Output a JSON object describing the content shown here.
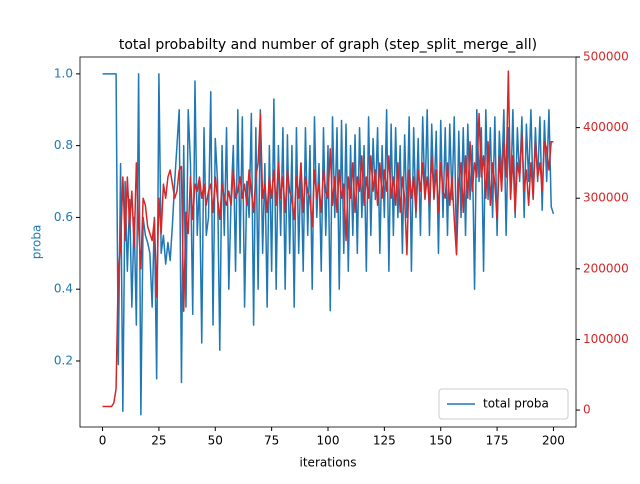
{
  "chart_data": {
    "type": "line",
    "title": "total probabilty and number of graph (step_split_merge_all)",
    "xlabel": "iterations",
    "ylabel": "proba",
    "legend": "lower right",
    "x": [
      0,
      1,
      2,
      3,
      4,
      5,
      6,
      7,
      8,
      9,
      10,
      11,
      12,
      13,
      14,
      15,
      16,
      17,
      18,
      19,
      20,
      21,
      22,
      23,
      24,
      25,
      26,
      27,
      28,
      29,
      30,
      31,
      32,
      33,
      34,
      35,
      36,
      37,
      38,
      39,
      40,
      41,
      42,
      43,
      44,
      45,
      46,
      47,
      48,
      49,
      50,
      51,
      52,
      53,
      54,
      55,
      56,
      57,
      58,
      59,
      60,
      61,
      62,
      63,
      64,
      65,
      66,
      67,
      68,
      69,
      70,
      71,
      72,
      73,
      74,
      75,
      76,
      77,
      78,
      79,
      80,
      81,
      82,
      83,
      84,
      85,
      86,
      87,
      88,
      89,
      90,
      91,
      92,
      93,
      94,
      95,
      96,
      97,
      98,
      99,
      100,
      101,
      102,
      103,
      104,
      105,
      106,
      107,
      108,
      109,
      110,
      111,
      112,
      113,
      114,
      115,
      116,
      117,
      118,
      119,
      120,
      121,
      122,
      123,
      124,
      125,
      126,
      127,
      128,
      129,
      130,
      131,
      132,
      133,
      134,
      135,
      136,
      137,
      138,
      139,
      140,
      141,
      142,
      143,
      144,
      145,
      146,
      147,
      148,
      149,
      150,
      151,
      152,
      153,
      154,
      155,
      156,
      157,
      158,
      159,
      160,
      161,
      162,
      163,
      164,
      165,
      166,
      167,
      168,
      169,
      170,
      171,
      172,
      173,
      174,
      175,
      176,
      177,
      178,
      179,
      180,
      181,
      182,
      183,
      184,
      185,
      186,
      187,
      188,
      189,
      190,
      191,
      192,
      193,
      194,
      195,
      196,
      197,
      198,
      199,
      200
    ],
    "series": [
      {
        "name": "total proba",
        "color": "#1f77b4",
        "axis": "y",
        "values": [
          1,
          1,
          1,
          1,
          1,
          1,
          1,
          0.19,
          0.75,
          0.06,
          0.7,
          0.45,
          0.65,
          0.35,
          0.6,
          0.3,
          1,
          0.05,
          0.6,
          0.55,
          0.53,
          0.5,
          0.35,
          0.6,
          0.15,
          1,
          0.5,
          0.55,
          0.47,
          0.53,
          0.48,
          0.58,
          0.7,
          0.8,
          0.9,
          0.14,
          0.8,
          0.35,
          0.9,
          0.75,
          0.33,
          0.98,
          0.55,
          0.7,
          0.25,
          0.85,
          0.55,
          0.6,
          0.95,
          0.3,
          0.82,
          0.7,
          0.23,
          0.8,
          0.55,
          0.85,
          0.4,
          0.65,
          0.8,
          0.45,
          0.9,
          0.5,
          0.88,
          0.35,
          0.7,
          0.6,
          0.89,
          0.3,
          0.85,
          0.4,
          0.9,
          0.5,
          0.75,
          0.35,
          0.8,
          0.45,
          0.93,
          0.4,
          0.8,
          0.55,
          0.85,
          0.4,
          0.83,
          0.5,
          0.8,
          0.35,
          0.85,
          0.5,
          0.75,
          0.45,
          0.85,
          0.55,
          0.8,
          0.4,
          0.88,
          0.6,
          0.75,
          0.45,
          0.85,
          0.55,
          0.8,
          0.34,
          0.88,
          0.6,
          0.85,
          0.4,
          0.87,
          0.5,
          0.86,
          0.45,
          0.8,
          0.55,
          0.83,
          0.5,
          0.85,
          0.6,
          0.8,
          0.45,
          0.88,
          0.55,
          0.82,
          0.65,
          0.85,
          0.5,
          0.8,
          0.6,
          0.9,
          0.45,
          0.86,
          0.55,
          0.85,
          0.6,
          0.8,
          0.5,
          0.83,
          0.6,
          0.88,
          0.45,
          0.85,
          0.6,
          0.82,
          0.55,
          0.88,
          0.65,
          0.9,
          0.55,
          0.86,
          0.65,
          0.84,
          0.5,
          0.87,
          0.6,
          0.85,
          0.55,
          0.86,
          0.65,
          0.88,
          0.5,
          0.84,
          0.6,
          0.85,
          0.55,
          0.86,
          0.65,
          0.8,
          0.4,
          0.9,
          0.7,
          0.85,
          0.45,
          0.9,
          0.65,
          0.85,
          0.6,
          0.88,
          0.55,
          0.84,
          0.7,
          0.9,
          0.55,
          0.85,
          0.65,
          0.9,
          0.6,
          0.85,
          0.7,
          0.88,
          0.6,
          0.86,
          0.7,
          0.9,
          0.65,
          0.85,
          0.7,
          0.88,
          0.62,
          0.87,
          0.7,
          0.9,
          0.63,
          0.61
        ]
      },
      {
        "color": "#d62728",
        "axis": "y2",
        "values": [
          5000,
          5000,
          5000,
          5000,
          5000,
          10000,
          30000,
          200000,
          230000,
          330000,
          240000,
          330000,
          260000,
          310000,
          230000,
          350000,
          260000,
          200000,
          300000,
          290000,
          260000,
          250000,
          240000,
          270000,
          160000,
          300000,
          250000,
          320000,
          300000,
          330000,
          340000,
          320000,
          300000,
          310000,
          340000,
          345000,
          140000,
          280000,
          250000,
          330000,
          270000,
          320000,
          310000,
          330000,
          300000,
          320000,
          290000,
          310000,
          320000,
          280000,
          330000,
          300000,
          270000,
          320000,
          300000,
          290000,
          310000,
          290000,
          340000,
          300000,
          310000,
          330000,
          300000,
          320000,
          290000,
          340000,
          310000,
          280000,
          330000,
          350000,
          420000,
          300000,
          320000,
          280000,
          330000,
          300000,
          340000,
          290000,
          350000,
          300000,
          330000,
          280000,
          340000,
          310000,
          300000,
          270000,
          330000,
          300000,
          350000,
          280000,
          330000,
          310000,
          300000,
          260000,
          340000,
          300000,
          320000,
          280000,
          340000,
          310000,
          300000,
          370000,
          290000,
          330000,
          280000,
          340000,
          300000,
          320000,
          240000,
          330000,
          300000,
          350000,
          280000,
          330000,
          310000,
          360000,
          290000,
          330000,
          300000,
          360000,
          310000,
          340000,
          290000,
          350000,
          300000,
          340000,
          310000,
          360000,
          300000,
          330000,
          290000,
          350000,
          280000,
          330000,
          300000,
          220000,
          340000,
          300000,
          330000,
          280000,
          340000,
          310000,
          350000,
          300000,
          330000,
          290000,
          360000,
          300000,
          340000,
          280000,
          350000,
          310000,
          300000,
          350000,
          290000,
          330000,
          270000,
          220000,
          320000,
          350000,
          280000,
          360000,
          300000,
          380000,
          310000,
          350000,
          330000,
          420000,
          330000,
          360000,
          300000,
          380000,
          290000,
          350000,
          320000,
          270000,
          360000,
          310000,
          380000,
          330000,
          480000,
          300000,
          360000,
          280000,
          350000,
          330000,
          390000,
          310000,
          340000,
          290000,
          350000,
          300000,
          380000,
          330000,
          350000,
          310000,
          380000,
          370000,
          340000,
          380000,
          380000
        ]
      }
    ],
    "xlim": [
      -10,
      210
    ],
    "xticks": [
      0,
      25,
      50,
      75,
      100,
      125,
      150,
      175,
      200
    ],
    "ylim": [
      0.016,
      1.047
    ],
    "yticks": [
      0.2,
      0.4,
      0.6,
      0.8,
      {
        "value": 1,
        "label": "1.0"
      }
    ],
    "y2lim": [
      -24000,
      500000
    ],
    "y2ticks": [
      0,
      100000,
      200000,
      300000,
      400000,
      500000
    ]
  }
}
